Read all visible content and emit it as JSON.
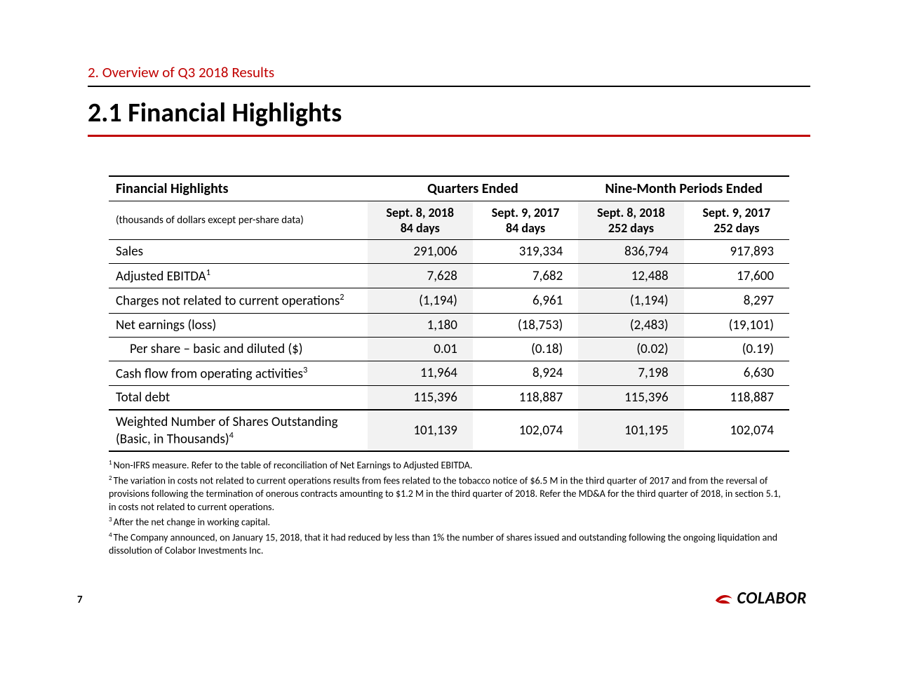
{
  "header": {
    "section_label": "2. Overview of Q3 2018 Results",
    "title": "2.1 Financial Highlights",
    "section_rule_color": "#000000",
    "title_rule_color": "#c00000"
  },
  "table": {
    "caption_left": "Financial Highlights",
    "group_headers": [
      "Quarters Ended",
      "Nine-Month Periods Ended"
    ],
    "meta_label": "(thousands of dollars except per-share data)",
    "period_headers": [
      {
        "line1": "Sept. 8, 2018",
        "line2": "84 days"
      },
      {
        "line1": "Sept. 9, 2017",
        "line2": "84 days"
      },
      {
        "line1": "Sept. 8, 2018",
        "line2": "252 days"
      },
      {
        "line1": "Sept. 9, 2017",
        "line2": "252 days"
      }
    ],
    "rows": [
      {
        "label": "Sales",
        "sup": "",
        "v": [
          "291,006",
          "319,334",
          "836,794",
          "917,893"
        ],
        "indent": false
      },
      {
        "label": "Adjusted EBITDA",
        "sup": "1",
        "v": [
          "7,628",
          "7,682",
          "12,488",
          "17,600"
        ],
        "indent": false
      },
      {
        "label": "Charges not related to current operations",
        "sup": "2",
        "v": [
          "(1,194)",
          "6,961",
          "(1,194)",
          "8,297"
        ],
        "indent": false
      },
      {
        "label": "Net earnings (loss)",
        "sup": "",
        "v": [
          "1,180",
          "(18,753)",
          "(2,483)",
          "(19,101)"
        ],
        "indent": false
      },
      {
        "label": "Per share – basic and diluted ($)",
        "sup": "",
        "v": [
          "0.01",
          "(0.18)",
          "(0.02)",
          "(0.19)"
        ],
        "indent": true
      },
      {
        "label": "Cash flow from operating activities",
        "sup": "3",
        "v": [
          "11,964",
          "8,924",
          "7,198",
          "6,630"
        ],
        "indent": false
      },
      {
        "label": "Total debt",
        "sup": "",
        "v": [
          "115,396",
          "118,887",
          "115,396",
          "118,887"
        ],
        "indent": false,
        "heavy": true
      },
      {
        "label": "Weighted Number of Shares Outstanding (Basic, in Thousands)",
        "sup": "4",
        "v": [
          "101,139",
          "102,074",
          "101,195",
          "102,074"
        ],
        "indent": false,
        "heavy": true
      }
    ],
    "shade_color": "#f2f2f2",
    "border_color": "#000000"
  },
  "footnotes": [
    {
      "num": "1",
      "text": "Non-IFRS measure. Refer to the table of reconciliation of Net Earnings to Adjusted EBITDA."
    },
    {
      "num": "2",
      "text": "The variation in costs not related to current operations results from fees related to the tobacco notice of $6.5 M in the third quarter of 2017 and from the reversal of provisions following the termination of onerous contracts amounting to $1.2 M in the third quarter of 2018. Refer the MD&A for the third quarter of 2018, in section 5.1, in costs not related to current operations."
    },
    {
      "num": "3",
      "text": "After the net change in working capital."
    },
    {
      "num": "4",
      "text": "The Company announced, on January 15, 2018, that it had reduced by less than 1% the number of shares issued and outstanding following the ongoing liquidation and dissolution of Colabor Investments Inc."
    }
  ],
  "page_number": "7",
  "logo": {
    "text": "COLABOR",
    "color": "#c00000"
  }
}
